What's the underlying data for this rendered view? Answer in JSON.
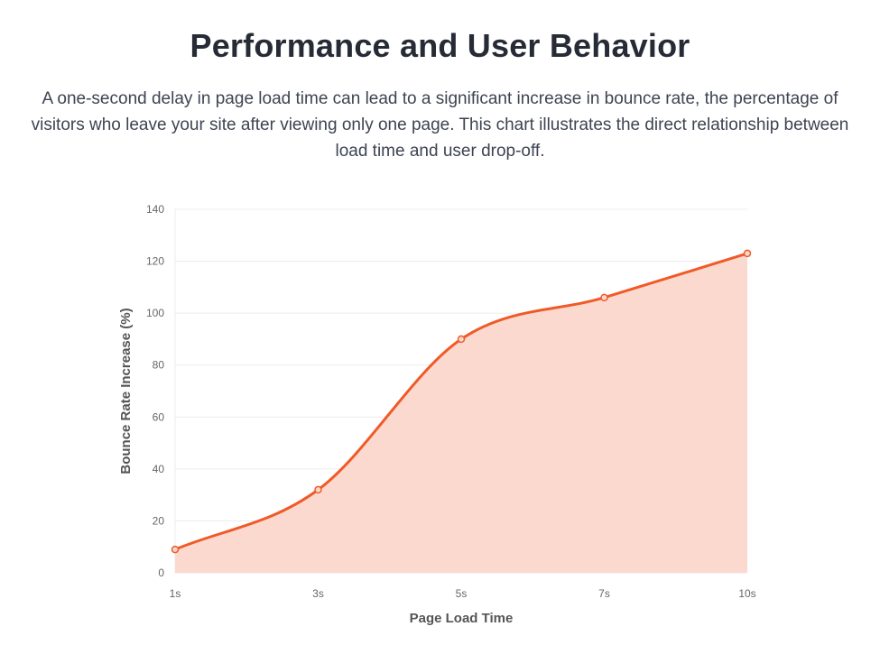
{
  "header": {
    "title": "Performance and User Behavior",
    "description": "A one-second delay in page load time can lead to a significant increase in bounce rate, the percentage of visitors who leave your site after viewing only one page. This chart illustrates the direct relationship between load time and user drop-off."
  },
  "colors": {
    "line": "#f05a28",
    "fill": "#fcd9cf",
    "grid": "#ececec",
    "axis_text": "#666666",
    "axis_title": "#555555"
  },
  "chart_data": {
    "type": "area",
    "categories": [
      "1s",
      "3s",
      "5s",
      "7s",
      "10s"
    ],
    "series": [
      {
        "values": [
          9,
          32,
          90,
          106,
          123
        ]
      }
    ],
    "xlabel": "Page Load Time",
    "ylabel": "Bounce Rate Increase (%)",
    "ylim": [
      0,
      140
    ],
    "yticks": [
      0,
      20,
      40,
      60,
      80,
      100,
      120,
      140
    ],
    "grid": true,
    "legend": "none",
    "smooth": true
  }
}
